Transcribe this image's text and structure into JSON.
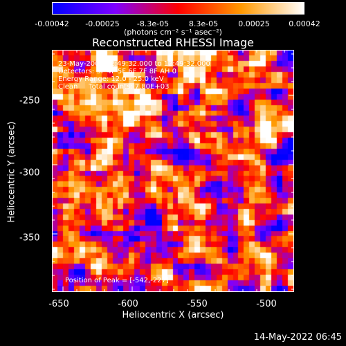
{
  "colorbar": {
    "ticks": [
      "-0.00042",
      "-0.00025",
      "-8.3e-05",
      "8.3e-05",
      "0.00025",
      "0.00042"
    ],
    "unit_label": "(photons cm⁻² s⁻¹ asec⁻²)",
    "colors": [
      "#0000ff",
      "#7f00ff",
      "#ff0000",
      "#ff9900",
      "#ffffff"
    ]
  },
  "chart_data": {
    "type": "heatmap",
    "title": "Reconstructed RHESSI Image",
    "xlabel": "Heliocentric X (arcsec)",
    "ylabel": "Heliocentric Y (arcsec)",
    "xlim": [
      -658,
      -483
    ],
    "ylim": [
      -392,
      -217
    ],
    "xticks": [
      -650,
      -600,
      -550,
      -500
    ],
    "yticks": [
      -250,
      -300,
      -350
    ],
    "peak_position": [
      -542,
      -227
    ],
    "annotations": [
      "23-May-2002 12:49:32.000 to 12:49:32.000",
      "Detectors: 3F 4F 5F 6F 7F 8F AH 0",
      "Energy Range: 12.0 - 25.0 keV",
      "Clean     Total counts: 7.80E+03"
    ],
    "peak_label": "Position of Peak = [-542,-227]"
  },
  "footer": {
    "timestamp": "14-May-2022 06:45"
  }
}
